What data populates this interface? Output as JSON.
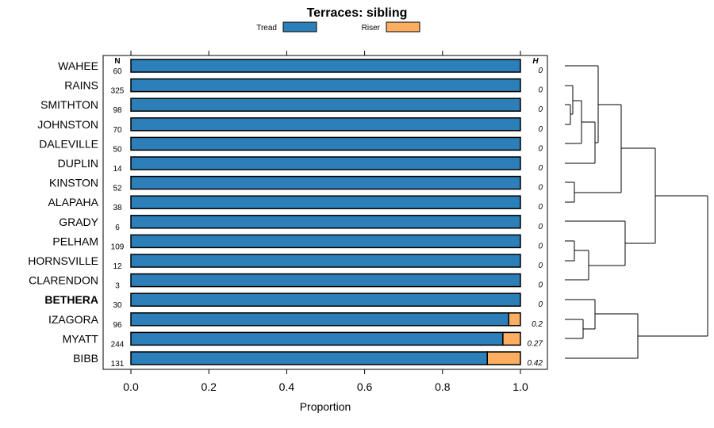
{
  "chart_data": {
    "type": "bar",
    "orientation": "horizontal",
    "stacked": true,
    "title": "Terraces: sibling",
    "xlabel": "Proportion",
    "xlim": [
      0,
      1
    ],
    "xticks": [
      "0.0",
      "0.2",
      "0.4",
      "0.6",
      "0.8",
      "1.0"
    ],
    "n_header": "N",
    "h_header": "H",
    "legend": [
      {
        "name": "Tread",
        "color": "#2c7fb8"
      },
      {
        "name": "Riser",
        "color": "#fdae61"
      }
    ],
    "legend_position": "top",
    "categories": [
      "WAHEE",
      "RAINS",
      "SMITHTON",
      "JOHNSTON",
      "DALEVILLE",
      "DUPLIN",
      "KINSTON",
      "ALAPAHA",
      "GRADY",
      "PELHAM",
      "HORNSVILLE",
      "CLARENDON",
      "BETHERA",
      "IZAGORA",
      "MYATT",
      "BIBB"
    ],
    "highlighted": "BETHERA",
    "N": [
      "60",
      "325",
      "98",
      "70",
      "50",
      "14",
      "52",
      "38",
      "6",
      "109",
      "12",
      "3",
      "30",
      "96",
      "244",
      "131"
    ],
    "H": [
      "0",
      "0",
      "0",
      "0",
      "0",
      "0",
      "0",
      "0",
      "0",
      "0",
      "0",
      "0",
      "0",
      "0.2",
      "0.27",
      "0.42"
    ],
    "series": [
      {
        "name": "Tread",
        "values": [
          1,
          1,
          1,
          1,
          1,
          1,
          1,
          1,
          1,
          1,
          1,
          1,
          1,
          0.97,
          0.955,
          0.915
        ]
      },
      {
        "name": "Riser",
        "values": [
          0,
          0,
          0,
          0,
          0,
          0,
          0,
          0,
          0,
          0,
          0,
          0,
          0,
          0.03,
          0.045,
          0.085
        ]
      }
    ]
  }
}
